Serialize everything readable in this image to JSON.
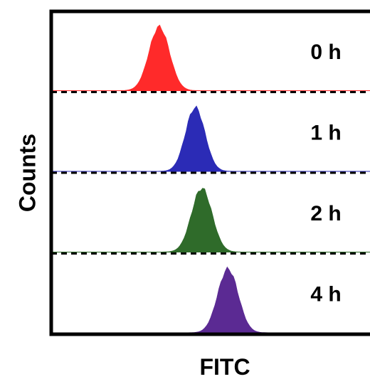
{
  "chart_data": {
    "type": "area",
    "title": "",
    "xlabel": "FITC",
    "ylabel": "Counts",
    "grid": false,
    "legend": "none",
    "series": [
      {
        "label": "0 h",
        "color": "#ff2a2a",
        "peak_x": 0.33,
        "width": 0.09,
        "peak": 0.9
      },
      {
        "label": "1 h",
        "color": "#2b2bb6",
        "peak_x": 0.44,
        "width": 0.085,
        "peak": 0.9
      },
      {
        "label": "2 h",
        "color": "#2f6b2a",
        "peak_x": 0.46,
        "width": 0.09,
        "peak": 0.9
      },
      {
        "label": "4 h",
        "color": "#5b2a93",
        "peak_x": 0.54,
        "width": 0.09,
        "peak": 0.9
      }
    ]
  }
}
